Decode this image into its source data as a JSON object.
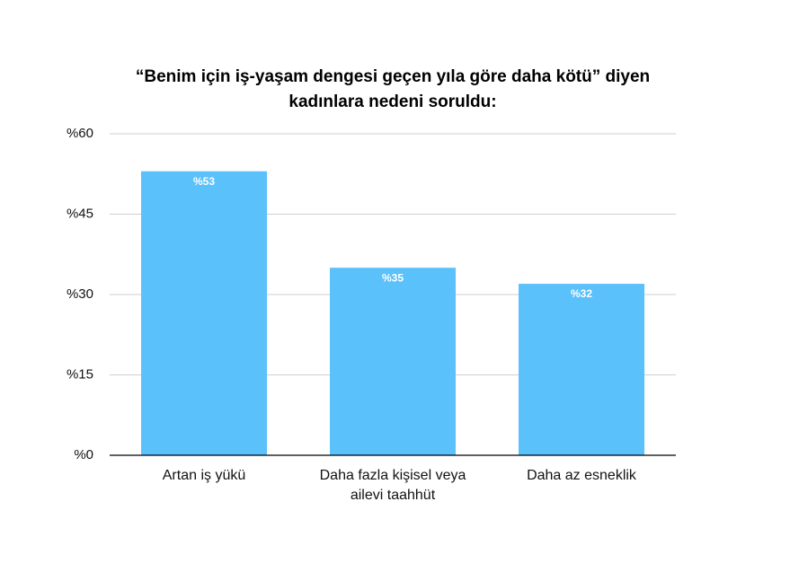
{
  "chart_data": {
    "type": "bar",
    "title": "“Benim için iş-yaşam dengesi geçen yıla göre daha kötü” diyen kadınlara nedeni soruldu:",
    "categories": [
      "Artan iş yükü",
      "Daha fazla kişisel veya ailevi taahhüt",
      "Daha az esneklik"
    ],
    "values": [
      53,
      35,
      32
    ],
    "value_labels": [
      "%53",
      "%35",
      "%32"
    ],
    "color": "#5ac1fb",
    "ylim": [
      0,
      60
    ],
    "yticks": [
      {
        "value": 0,
        "label": "%0"
      },
      {
        "value": 15,
        "label": "%15"
      },
      {
        "value": 30,
        "label": "%30"
      },
      {
        "value": 45,
        "label": "%45"
      },
      {
        "value": 60,
        "label": "%60"
      }
    ],
    "grid": true
  }
}
